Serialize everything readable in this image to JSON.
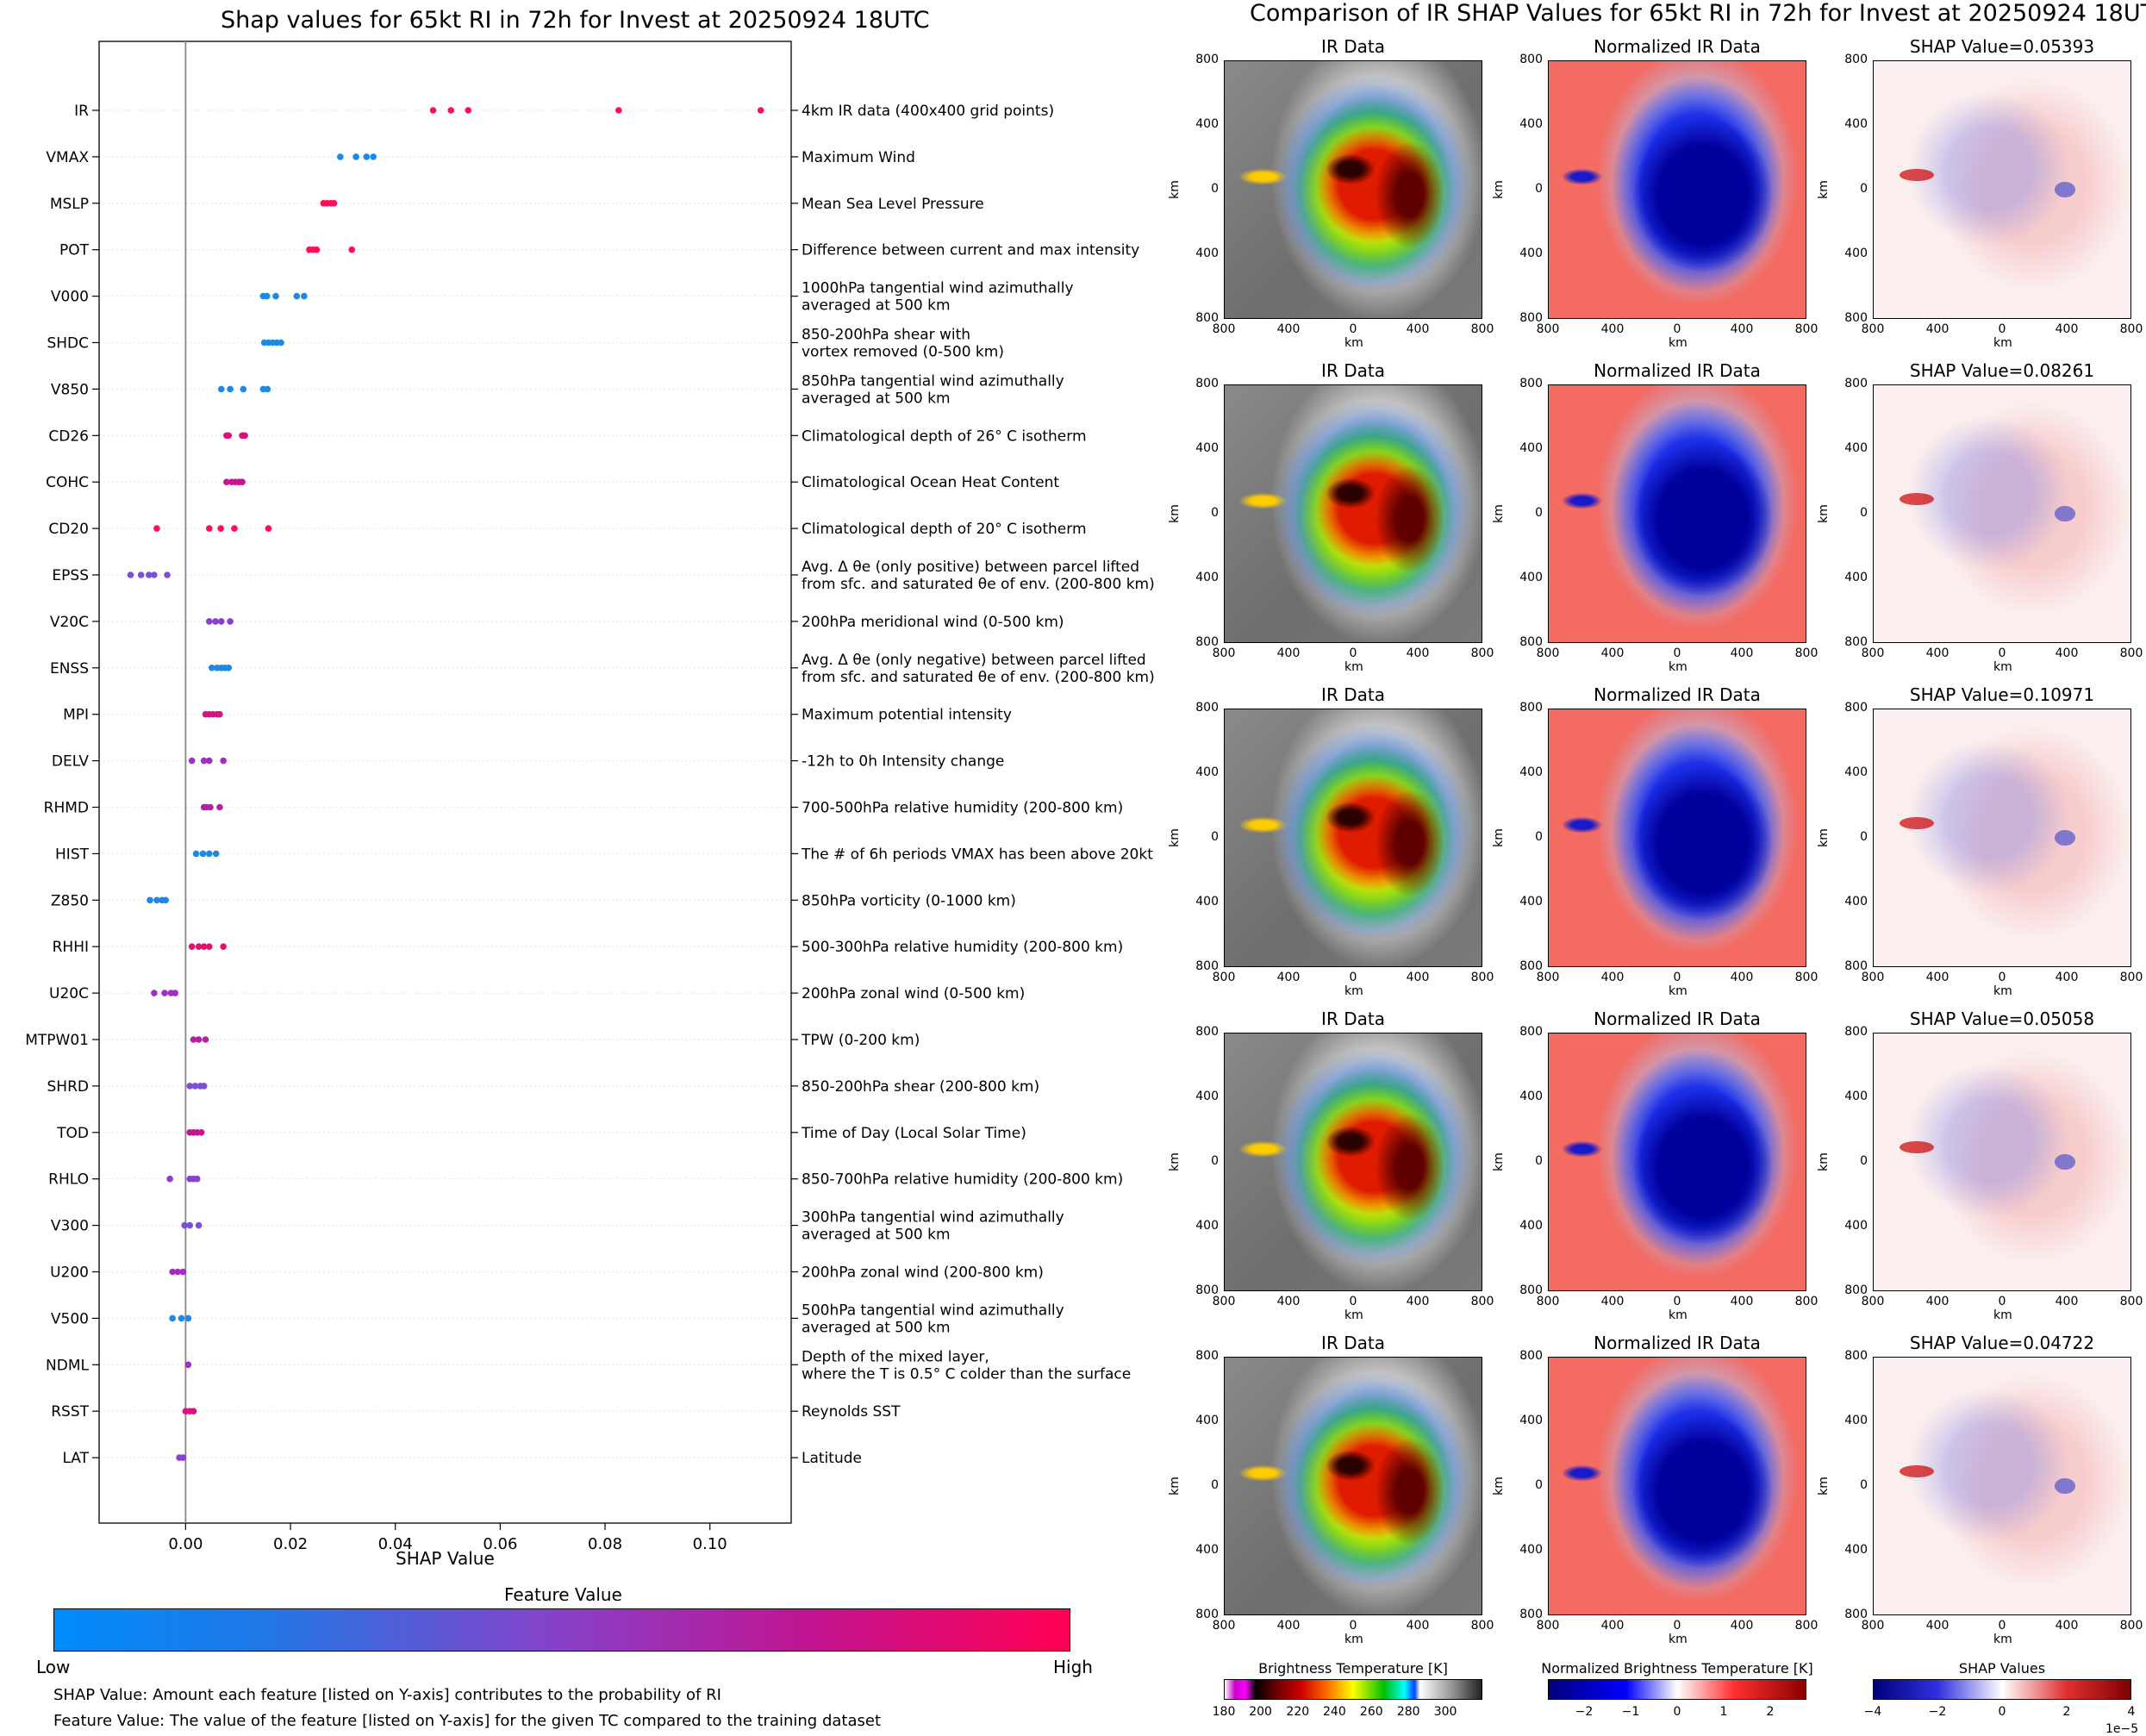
{
  "left_title": "Shap values for 65kt RI in 72h for Invest at 20250924 18UTC",
  "right_title": "Comparison of IR SHAP Values for 65kt RI in 72h for Invest at 20250924 18UTC",
  "chart_data": [
    {
      "type": "scatter",
      "title": "Shap values for 65kt RI in 72h for Invest at 20250924 18UTC",
      "xlabel": "SHAP Value",
      "xlim": [
        -0.0165,
        0.1155
      ],
      "xticks": [
        "0.00",
        "0.02",
        "0.04",
        "0.06",
        "0.08",
        "0.10"
      ],
      "grid": "horizontal dotted",
      "features": [
        {
          "name": "IR",
          "desc": "4km IR data (400x400 grid points)",
          "color": "#ff0d57",
          "values": [
            0.0472,
            0.0506,
            0.0539,
            0.0826,
            0.1097
          ]
        },
        {
          "name": "VMAX",
          "desc": "Maximum Wind",
          "color": "#1e88e5",
          "values": [
            0.0295,
            0.0325,
            0.0345,
            0.0358
          ]
        },
        {
          "name": "MSLP",
          "desc": "Mean Sea Level Pressure",
          "color": "#ff0d57",
          "values": [
            0.0263,
            0.027,
            0.0277,
            0.0283
          ]
        },
        {
          "name": "POT",
          "desc": "Difference between current and max intensity",
          "color": "#ff0d57",
          "values": [
            0.0236,
            0.0243,
            0.025,
            0.0317
          ]
        },
        {
          "name": "V000",
          "desc": "1000hPa tangential wind azimuthally\naveraged at 500 km",
          "color": "#1e88e5",
          "values": [
            0.0148,
            0.0155,
            0.0172,
            0.0212,
            0.0226
          ]
        },
        {
          "name": "SHDC",
          "desc": "850-200hPa shear with\nvortex removed (0-500 km)",
          "color": "#1e88e5",
          "values": [
            0.015,
            0.0158,
            0.0166,
            0.0174,
            0.0182
          ]
        },
        {
          "name": "V850",
          "desc": "850hPa tangential wind azimuthally\naveraged at 500 km",
          "color": "#1e88e5",
          "values": [
            0.0068,
            0.0085,
            0.011,
            0.0148,
            0.0156
          ]
        },
        {
          "name": "CD26",
          "desc": "Climatological depth of 26° C isotherm",
          "color": "#d6137e",
          "values": [
            0.0078,
            0.0082,
            0.0108,
            0.0113
          ]
        },
        {
          "name": "COHC",
          "desc": "Climatological Ocean Heat Content",
          "color": "#c81391",
          "values": [
            0.0078,
            0.0088,
            0.0095,
            0.0102,
            0.0108
          ]
        },
        {
          "name": "CD20",
          "desc": "Climatological depth of 20° C isotherm",
          "color": "#ff0d57",
          "values": [
            -0.0055,
            0.0045,
            0.0067,
            0.0093,
            0.0158
          ]
        },
        {
          "name": "EPSS",
          "desc": "Avg. Δ θe (only positive) between parcel lifted\nfrom sfc. and saturated θe of env. (200-800 km)",
          "color": "#7b4fd6",
          "values": [
            -0.0105,
            -0.0085,
            -0.007,
            -0.006,
            -0.0035
          ]
        },
        {
          "name": "V20C",
          "desc": "200hPa meridional wind (0-500 km)",
          "color": "#8a3fcf",
          "values": [
            0.0045,
            0.0057,
            0.0068,
            0.0085
          ]
        },
        {
          "name": "ENSS",
          "desc": "Avg. Δ θe (only negative) between parcel lifted\nfrom sfc. and saturated θe of env. (200-800 km)",
          "color": "#1e88e5",
          "values": [
            0.005,
            0.006,
            0.0068,
            0.0075,
            0.0082
          ]
        },
        {
          "name": "MPI",
          "desc": "Maximum potential intensity",
          "color": "#d6137e",
          "values": [
            0.0038,
            0.0045,
            0.0052,
            0.006,
            0.0065
          ]
        },
        {
          "name": "DELV",
          "desc": "-12h to 0h Intensity change",
          "color": "#a32cc4",
          "values": [
            0.0012,
            0.0035,
            0.0045,
            0.0072
          ]
        },
        {
          "name": "RHMD",
          "desc": "700-500hPa relative humidity (200-800 km)",
          "color": "#b51fa8",
          "values": [
            0.0035,
            0.004,
            0.0047,
            0.0065
          ]
        },
        {
          "name": "HIST",
          "desc": "The # of 6h periods VMAX has been above 20kt",
          "color": "#1e88e5",
          "values": [
            0.002,
            0.0033,
            0.0045,
            0.0058
          ]
        },
        {
          "name": "Z850",
          "desc": "850hPa vorticity (0-1000 km)",
          "color": "#1e88e5",
          "values": [
            -0.0068,
            -0.0055,
            -0.0045,
            -0.0038
          ]
        },
        {
          "name": "RHHI",
          "desc": "500-300hPa relative humidity (200-800 km)",
          "color": "#e6106c",
          "values": [
            0.0012,
            0.0025,
            0.0035,
            0.0045,
            0.0072
          ]
        },
        {
          "name": "U20C",
          "desc": "200hPa zonal wind (0-500 km)",
          "color": "#a32cc4",
          "values": [
            -0.006,
            -0.004,
            -0.0028,
            -0.002
          ]
        },
        {
          "name": "MTPW01",
          "desc": "TPW (0-200 km)",
          "color": "#b51fa8",
          "values": [
            0.0015,
            0.0025,
            0.0038
          ]
        },
        {
          "name": "SHRD",
          "desc": "850-200hPa shear (200-800 km)",
          "color": "#7b4fd6",
          "values": [
            0.0008,
            0.0018,
            0.0028,
            0.0035
          ]
        },
        {
          "name": "TOD",
          "desc": "Time of Day (Local Solar Time)",
          "color": "#c81391",
          "values": [
            0.0008,
            0.0015,
            0.0022,
            0.003
          ]
        },
        {
          "name": "RHLO",
          "desc": "850-700hPa relative humidity (200-800 km)",
          "color": "#8a3fcf",
          "values": [
            -0.003,
            0.0008,
            0.0015,
            0.0022
          ]
        },
        {
          "name": "V300",
          "desc": "300hPa tangential wind azimuthally\naveraged at 500 km",
          "color": "#7b4fd6",
          "values": [
            -0.0002,
            0.0008,
            0.0025
          ]
        },
        {
          "name": "U200",
          "desc": "200hPa zonal wind (200-800 km)",
          "color": "#a32cc4",
          "values": [
            -0.0025,
            -0.0015,
            -0.0005
          ]
        },
        {
          "name": "V500",
          "desc": "500hPa tangential wind azimuthally\naveraged at 500 km",
          "color": "#1e88e5",
          "values": [
            -0.0025,
            -0.0008,
            0.0005
          ]
        },
        {
          "name": "NDML",
          "desc": "Depth of the mixed layer,\nwhere the T is 0.5° C colder than the surface",
          "color": "#a32cc4",
          "values": [
            0.0005
          ]
        },
        {
          "name": "RSST",
          "desc": "Reynolds SST",
          "color": "#d6137e",
          "values": [
            0.0,
            0.0008,
            0.0015
          ]
        },
        {
          "name": "LAT",
          "desc": "Latitude",
          "color": "#8a3fcf",
          "values": [
            -0.0012,
            -0.0005
          ]
        }
      ]
    },
    {
      "type": "heatmap",
      "title": "Comparison of IR SHAP Values for 65kt RI in 72h for Invest at 20250924 18UTC",
      "columns": [
        "IR Data",
        "Normalized IR Data",
        "SHAP Value"
      ],
      "shap_values": [
        "0.05393",
        "0.08261",
        "0.10971",
        "0.05058",
        "0.04722"
      ],
      "xlabel": "km",
      "ylabel": "km",
      "axis_ticks": [
        "800",
        "400",
        "0",
        "400",
        "800"
      ]
    }
  ],
  "feature_bar": {
    "title": "Feature Value",
    "low": "Low",
    "high": "High",
    "colors": [
      "#008bfb",
      "#1f78e6",
      "#8840c8",
      "#c2138f",
      "#ff0052"
    ]
  },
  "notes": [
    "SHAP Value: Amount each feature [listed on Y-axis] contributes to the probability of RI",
    "Feature Value: The value of the feature [listed on Y-axis] for the given TC compared to the training dataset"
  ],
  "colorbars": [
    {
      "title": "Brightness Temperature [K]",
      "ticks": [
        "180",
        "200",
        "220",
        "240",
        "260",
        "280",
        "300"
      ]
    },
    {
      "title": "Normalized Brightness Temperature [K]",
      "ticks": [
        "−2",
        "−1",
        "0",
        "1",
        "2"
      ]
    },
    {
      "title": "SHAP Values",
      "ticks": [
        "−4",
        "−2",
        "0",
        "2",
        "4"
      ],
      "offset": "1e−5"
    }
  ]
}
